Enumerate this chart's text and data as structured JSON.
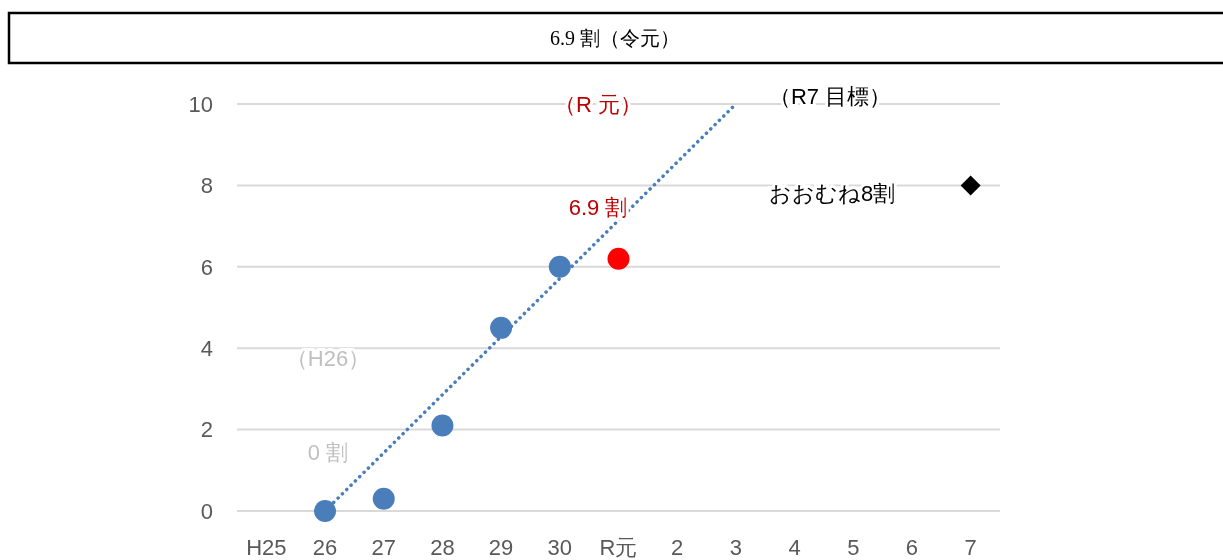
{
  "chart_data": {
    "type": "scatter",
    "title": "6.9 割（令元）",
    "categories": [
      "H25",
      "26",
      "27",
      "28",
      "29",
      "30",
      "R元",
      "2",
      "3",
      "4",
      "5",
      "6",
      "7"
    ],
    "ylim": [
      0,
      10
    ],
    "yticks": [
      0,
      2,
      4,
      6,
      8,
      10
    ],
    "grid": "y",
    "series": [
      {
        "type": "line",
        "color": "#4a7ebb",
        "line_style": "dotted",
        "marker": "none",
        "x": [
          "26",
          "3"
        ],
        "values": [
          0,
          10
        ]
      },
      {
        "color": "#4a7ebb",
        "marker": "circle",
        "x": [
          "26",
          "27",
          "28",
          "29",
          "30"
        ],
        "values": [
          0,
          0.3,
          2.1,
          4.5,
          6.0
        ]
      },
      {
        "color": "#ff0000",
        "marker": "circle",
        "x": [
          "R元"
        ],
        "values": [
          6.2
        ]
      },
      {
        "color": "#000000",
        "marker": "diamond",
        "x": [
          "7"
        ],
        "values": [
          8
        ]
      }
    ],
    "annotations": [
      "（R 元）",
      "6.9 割",
      "（R7 目標）",
      "おおむね8割",
      "（H26）",
      "0 割"
    ]
  }
}
